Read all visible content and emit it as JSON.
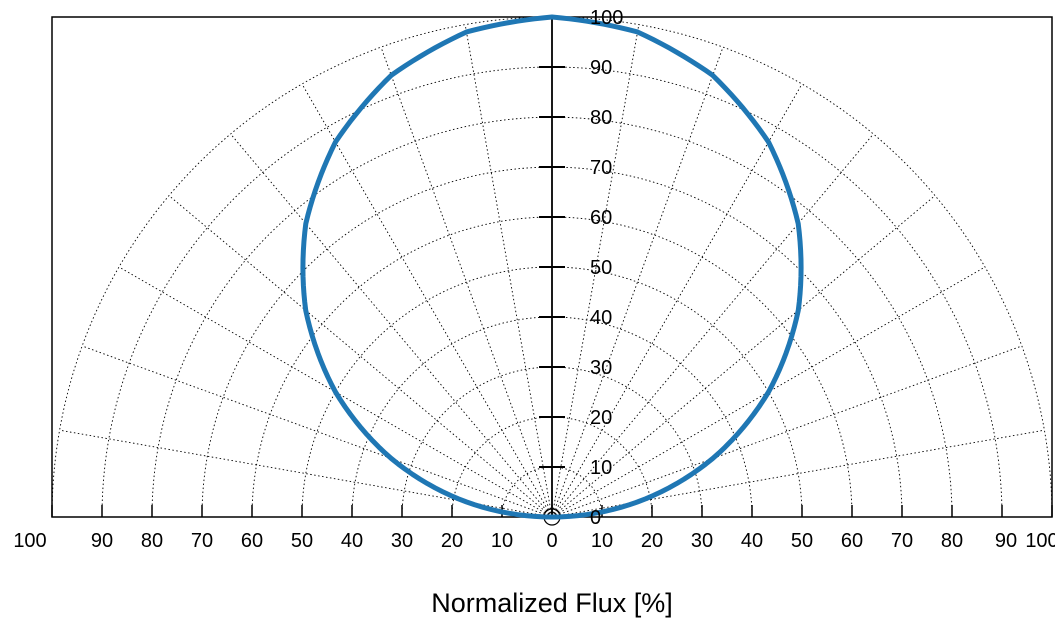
{
  "chart_data": {
    "type": "polar-halfplane",
    "xlabel": "Normalized Flux [%]",
    "ylabel": "",
    "title": "",
    "radial_range": [
      0,
      100
    ],
    "radial_ticks": [
      0,
      10,
      20,
      30,
      40,
      50,
      60,
      70,
      80,
      90,
      100
    ],
    "x_tick_labels": [
      "100",
      "90",
      "80",
      "70",
      "60",
      "50",
      "40",
      "30",
      "20",
      "10",
      "0",
      "10",
      "20",
      "30",
      "40",
      "50",
      "60",
      "70",
      "80",
      "90",
      "100"
    ],
    "y_tick_labels": [
      "0",
      "10",
      "20",
      "30",
      "40",
      "50",
      "60",
      "70",
      "80",
      "90",
      "100"
    ],
    "angle_grid_step_deg": 10,
    "grid": true,
    "series": [
      {
        "color": "#1f77b4",
        "points": [
          {
            "angle_deg": 0,
            "value": 100
          },
          {
            "angle_deg": 10,
            "value": 98.5
          },
          {
            "angle_deg": 20,
            "value": 94
          },
          {
            "angle_deg": 30,
            "value": 86.6
          },
          {
            "angle_deg": 40,
            "value": 76.6
          },
          {
            "angle_deg": 50,
            "value": 64.3
          },
          {
            "angle_deg": 60,
            "value": 50
          },
          {
            "angle_deg": 70,
            "value": 34.2
          },
          {
            "angle_deg": 80,
            "value": 17.4
          },
          {
            "angle_deg": 90,
            "value": 0
          }
        ]
      }
    ]
  }
}
